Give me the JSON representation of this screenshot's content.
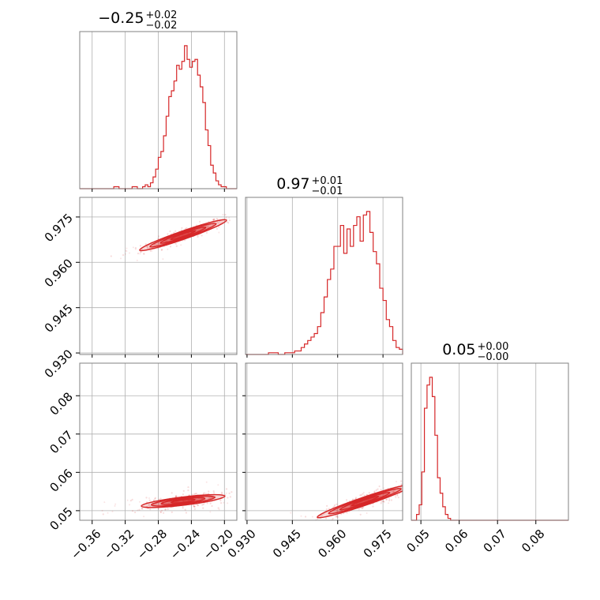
{
  "chart_data": {
    "type": "corner",
    "colors": {
      "series": "#d62728",
      "frame": "#808080",
      "grid": "#b0b0b0"
    },
    "grid": true,
    "titles": [
      {
        "main": "−0.25",
        "sup": "+0.02",
        "sub": "−0.02"
      },
      {
        "main": "0.97",
        "sup": "+0.01",
        "sub": "−0.01"
      },
      {
        "main": "0.05",
        "sup": "+0.00",
        "sub": "−0.00"
      }
    ],
    "ranges": [
      [
        -0.375,
        -0.185
      ],
      [
        0.9295,
        0.9815
      ],
      [
        0.0475,
        0.0885
      ]
    ],
    "ticks": [
      {
        "values": [
          -0.36,
          -0.32,
          -0.28,
          -0.24,
          -0.2
        ],
        "labels": [
          "−0.36",
          "−0.32",
          "−0.28",
          "−0.24",
          "−0.20"
        ]
      },
      {
        "values": [
          0.93,
          0.945,
          0.96,
          0.975
        ],
        "labels": [
          "0.930",
          "0.945",
          "0.960",
          "0.975"
        ]
      },
      {
        "values": [
          0.05,
          0.06,
          0.07,
          0.08
        ],
        "labels": [
          "0.05",
          "0.06",
          "0.07",
          "0.08"
        ]
      }
    ],
    "histograms": [
      {
        "edges": [
          -0.375,
          -0.185
        ],
        "counts": [
          0,
          0,
          0,
          0,
          0,
          0,
          0,
          0,
          0,
          0,
          0,
          0,
          0,
          1,
          1,
          0,
          0,
          0,
          0,
          0,
          1,
          1,
          0,
          0,
          1,
          2,
          1,
          3,
          6,
          10,
          16,
          19,
          27,
          37,
          47,
          50,
          55,
          63,
          61,
          65,
          73,
          66,
          62,
          65,
          66,
          58,
          52,
          44,
          30,
          22,
          12,
          8,
          4,
          2,
          1,
          1,
          0,
          0,
          0,
          0
        ]
      },
      {
        "edges": [
          0.9295,
          0.9815
        ],
        "counts": [
          0,
          0,
          0,
          0,
          0,
          0,
          0,
          1,
          1,
          1,
          0,
          0,
          1,
          1,
          1,
          2,
          2,
          4,
          6,
          8,
          10,
          12,
          16,
          24,
          33,
          43,
          49,
          62,
          62,
          74,
          58,
          72,
          62,
          74,
          79,
          65,
          80,
          82,
          70,
          59,
          52,
          38,
          31,
          20,
          16,
          8,
          4,
          3
        ]
      },
      {
        "edges": [
          0.0475,
          0.0885
        ],
        "counts": [
          0,
          0,
          3,
          8,
          25,
          58,
          70,
          74,
          64,
          44,
          22,
          14,
          7,
          3,
          1,
          0,
          0,
          0,
          0,
          0,
          0,
          0,
          0,
          0,
          0,
          0,
          0,
          0,
          0,
          0,
          0,
          0,
          0,
          0,
          0,
          0,
          0,
          0,
          0,
          0,
          0,
          0,
          0,
          0,
          0,
          0,
          0,
          0,
          0,
          0,
          0,
          0,
          0,
          0,
          0,
          0,
          0,
          0,
          0,
          0
        ]
      }
    ],
    "pairs": [
      {
        "x": 0,
        "y": 1,
        "center": [
          -0.25,
          0.969
        ],
        "slope": 0.346,
        "spread_x": 0.025,
        "width_y": 0.0011,
        "outlier_range": [
          -0.33,
          -0.19
        ]
      },
      {
        "x": 0,
        "y": 2,
        "center": [
          -0.25,
          0.0525
        ],
        "slope": 0.12,
        "spread_x": 0.024,
        "width_y": 0.0011,
        "outlier_range": [
          -0.35,
          -0.19
        ]
      },
      {
        "x": 1,
        "y": 2,
        "center": [
          0.969,
          0.0525
        ],
        "slope": 0.34,
        "spread_x": 0.0075,
        "width_y": 0.0011,
        "outlier_range": [
          0.94,
          0.981
        ]
      }
    ]
  }
}
